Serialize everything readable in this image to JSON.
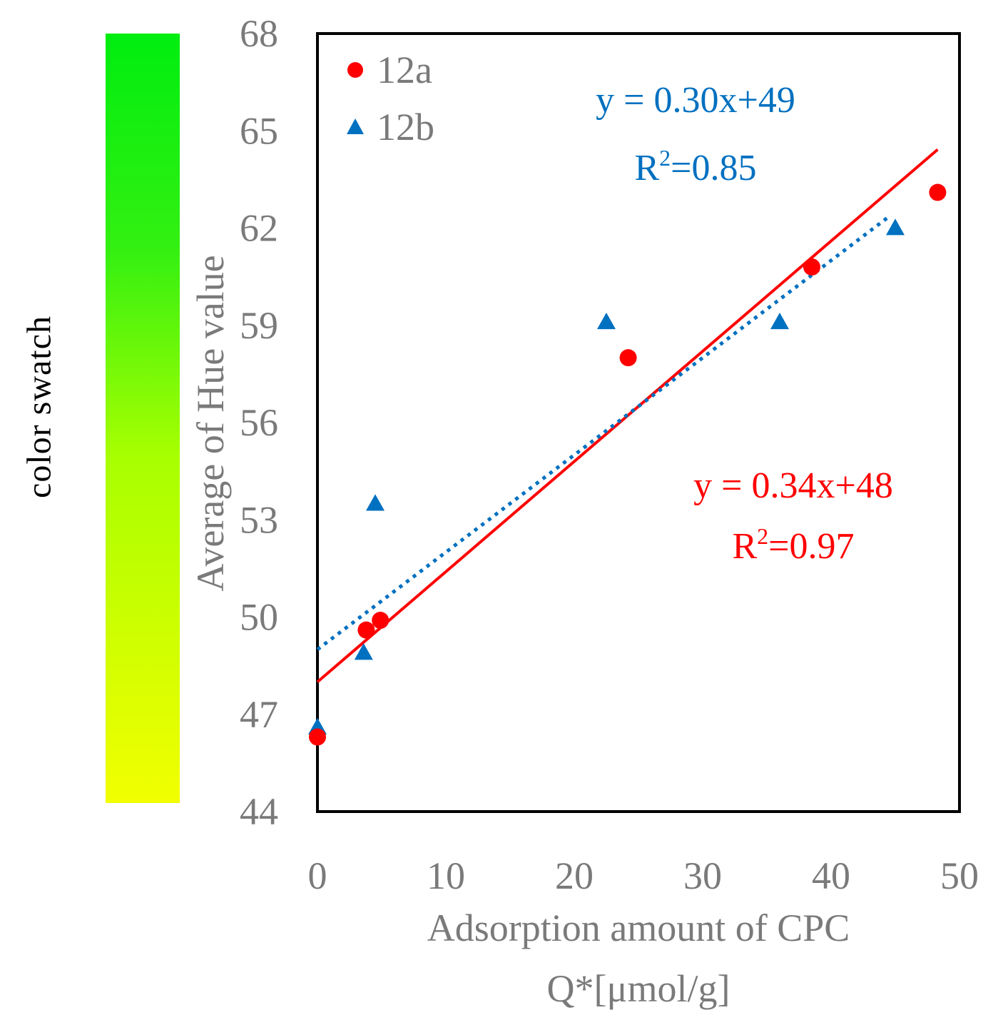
{
  "swatch": {
    "label": "color swatch",
    "top_color": "#00ee10",
    "bottom_color": "#f2ff00"
  },
  "chart_data": {
    "type": "scatter",
    "title": "",
    "xlabel": "Adsorption amount of CPC",
    "xlabel_line2": "Q*[μmol/g]",
    "ylabel": "Average of Hue value",
    "xlim": [
      0,
      50
    ],
    "ylim": [
      44,
      68
    ],
    "xticks": [
      0,
      10,
      20,
      30,
      40,
      50
    ],
    "yticks": [
      44,
      47,
      50,
      53,
      56,
      59,
      62,
      65,
      68
    ],
    "legend_position": "top-left",
    "series": [
      {
        "name": "12a",
        "marker": "circle",
        "color": "#ff0000",
        "x": [
          0,
          3.8,
          4.9,
          24.2,
          38.5,
          48.3
        ],
        "y": [
          46.3,
          49.6,
          49.9,
          58.0,
          60.8,
          63.1
        ],
        "trendline": {
          "style": "solid",
          "slope": 0.34,
          "intercept": 48,
          "x_range": [
            0,
            48.3
          ],
          "equation": "y = 0.34x+48",
          "r2_prefix": "R",
          "r2_sup": "2",
          "r2_value": "=0.97"
        }
      },
      {
        "name": "12b",
        "marker": "triangle",
        "color": "#0070c0",
        "x": [
          0,
          3.6,
          4.5,
          22.5,
          36.0,
          45.0
        ],
        "y": [
          46.6,
          48.9,
          53.5,
          59.1,
          59.1,
          62.0
        ],
        "trendline": {
          "style": "dotted",
          "slope": 0.3,
          "intercept": 49,
          "x_range": [
            0,
            44.5
          ],
          "equation": "y = 0.30x+49",
          "r2_prefix": "R",
          "r2_sup": "2",
          "r2_value": "=0.85"
        }
      }
    ]
  }
}
